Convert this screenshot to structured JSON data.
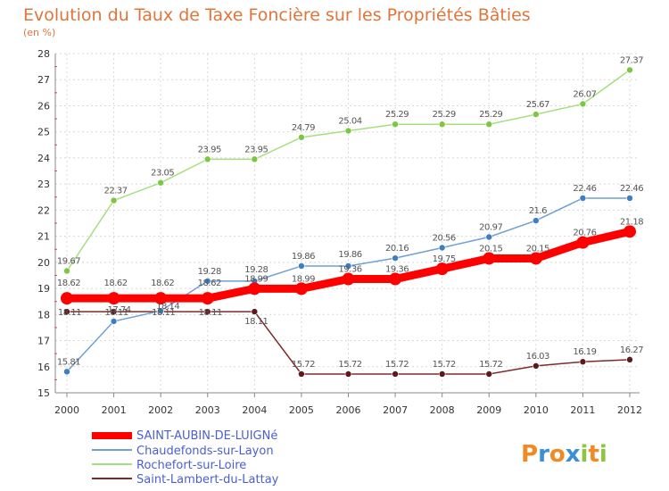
{
  "chart_data": {
    "type": "line",
    "title": "Evolution du Taux de Taxe Foncière sur les Propriétés Bâties",
    "subtitle": "(en %)",
    "xlabel": "",
    "ylabel": "",
    "ylim": [
      15,
      28
    ],
    "yticks": [
      15,
      16,
      17,
      18,
      19,
      20,
      21,
      22,
      23,
      24,
      25,
      26,
      27,
      28
    ],
    "grid": true,
    "legend_position": "bottom-left",
    "x": [
      "2000",
      "2001",
      "2002",
      "2003",
      "2004",
      "2005",
      "2006",
      "2007",
      "2008",
      "2009",
      "2010",
      "2011",
      "2012"
    ],
    "series": [
      {
        "name": "SAINT-AUBIN-DE-LUIGNé",
        "color": "#ff0000",
        "emphasis": true,
        "values": [
          18.62,
          18.62,
          18.62,
          18.62,
          18.99,
          18.99,
          19.36,
          19.36,
          19.75,
          20.15,
          20.15,
          20.76,
          21.18
        ]
      },
      {
        "name": "Chaudefonds-sur-Layon",
        "color": "#6fa0d3",
        "dot": "#3d7fc4",
        "values": [
          15.81,
          17.74,
          18.14,
          19.28,
          19.28,
          19.86,
          19.86,
          20.16,
          20.56,
          20.97,
          21.6,
          22.46,
          22.46
        ]
      },
      {
        "name": "Rochefort-sur-Loire",
        "color": "#a6df7f",
        "dot": "#7cc742",
        "values": [
          19.67,
          22.37,
          23.05,
          23.95,
          23.95,
          24.79,
          25.04,
          25.29,
          25.29,
          25.29,
          25.67,
          26.07,
          27.37
        ]
      },
      {
        "name": "Saint-Lambert-du-Lattay",
        "color": "#7d2a2a",
        "dot": "#5c1a1a",
        "values": [
          18.11,
          18.11,
          18.11,
          18.11,
          18.11,
          15.72,
          15.72,
          15.72,
          15.72,
          15.72,
          16.03,
          16.19,
          16.27
        ]
      }
    ],
    "point_labels": [
      {
        "series": 0,
        "labels": [
          "18.62",
          "18.62",
          "18.62",
          "18.62",
          "18.99",
          "18.99",
          "19.36",
          "19.36",
          "19.75",
          "20.15",
          "20.15",
          "20.76",
          "21.18"
        ]
      },
      {
        "series": 1,
        "labels": [
          "15.81",
          "17.74",
          "18.14",
          "19.28",
          "19.28",
          "19.86",
          "19.86",
          "20.16",
          "20.56",
          "20.97",
          "21.6",
          "22.46",
          "22.46"
        ]
      },
      {
        "series": 2,
        "labels": [
          "19.67",
          "22.37",
          "23.05",
          "23.95",
          "23.95",
          "24.79",
          "25.04",
          "25.29",
          "25.29",
          "25.29",
          "25.67",
          "26.07",
          "27.37"
        ]
      },
      {
        "series": 3,
        "labels": [
          "18.11",
          "18.11",
          "18.11",
          "18.11",
          "18.11",
          "15.72",
          "15.72",
          "15.72",
          "15.72",
          "15.72",
          "16.03",
          "16.19",
          "16.27"
        ]
      }
    ]
  },
  "branding": {
    "logo_text": "Proxiti",
    "logo_letters": [
      "P",
      "r",
      "o",
      "x",
      "i",
      "t",
      "i"
    ],
    "logo_colors": [
      "#f08a24",
      "#3a8fd6",
      "#f08a24",
      "#3a8fd6",
      "#8cc63f",
      "#f08a24",
      "#8cc63f"
    ]
  }
}
